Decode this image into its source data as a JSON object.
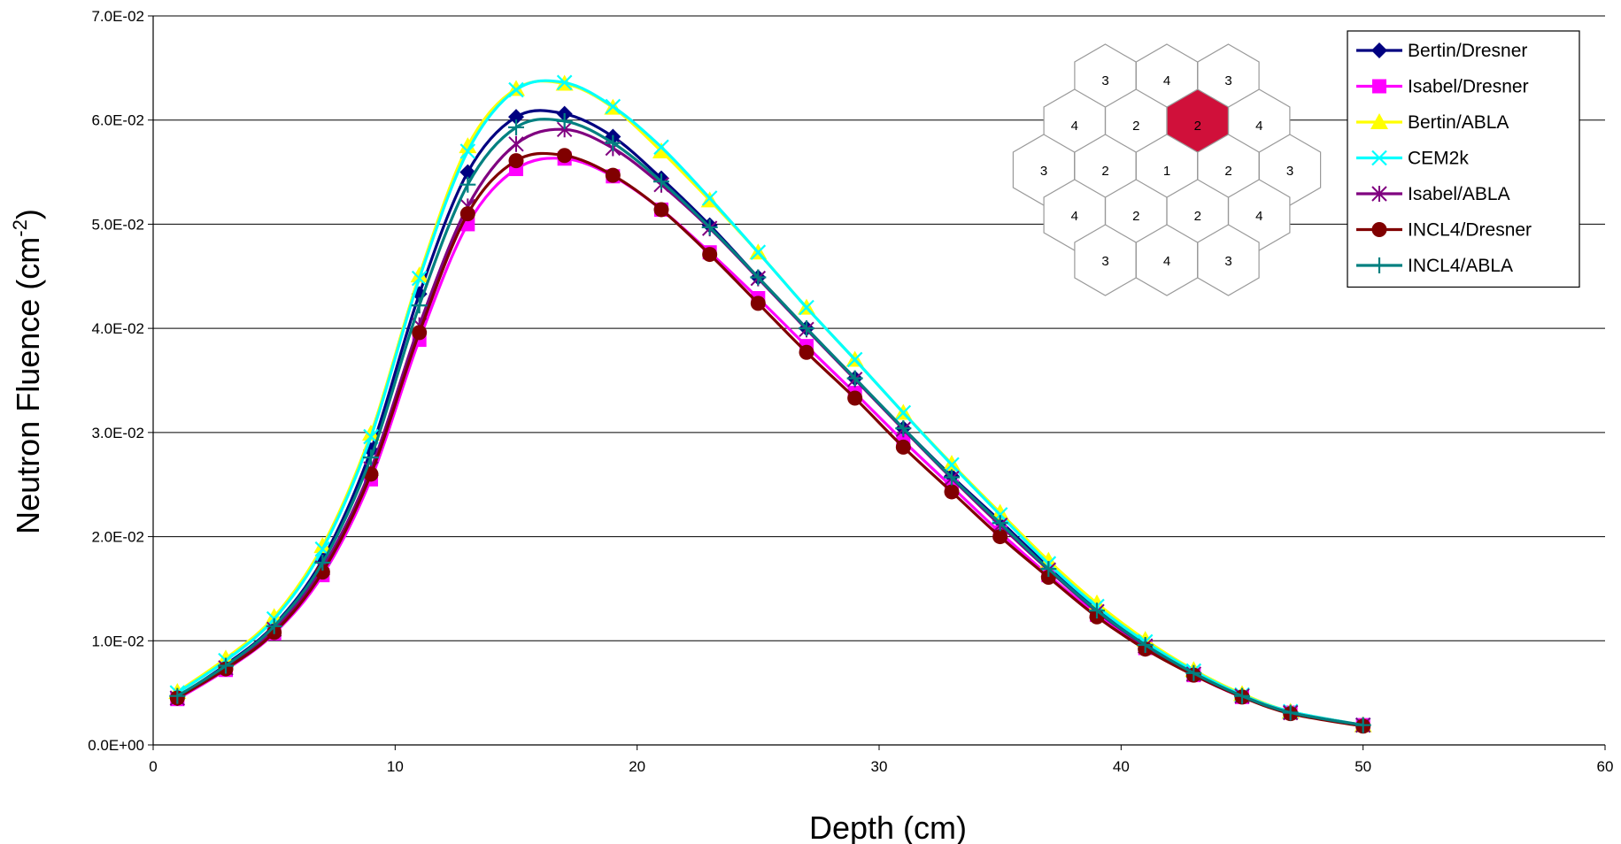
{
  "chart_data": {
    "type": "line",
    "title": "",
    "xlabel": "Depth (cm)",
    "ylabel": "Neutron Fluence (cm",
    "ylabel_sup": "-2",
    "ylabel_close": ")",
    "xlim": [
      0,
      60
    ],
    "ylim": [
      0,
      0.07
    ],
    "x_ticks": [
      "0",
      "10",
      "20",
      "30",
      "40",
      "50",
      "60"
    ],
    "y_ticks": [
      "0.0E+00",
      "1.0E-02",
      "2.0E-02",
      "3.0E-02",
      "4.0E-02",
      "5.0E-02",
      "6.0E-02",
      "7.0E-02"
    ],
    "grid": "horizontal",
    "legend_position": "top-right",
    "x": [
      1,
      3,
      5,
      7,
      9,
      11,
      13,
      15,
      17,
      19,
      21,
      23,
      25,
      27,
      29,
      31,
      33,
      35,
      37,
      39,
      41,
      43,
      45,
      47,
      50
    ],
    "series": [
      {
        "name": "Bertin/Dresner",
        "color": "#000080",
        "marker": "diamond",
        "values": [
          0.0046,
          0.0077,
          0.0115,
          0.0178,
          0.0283,
          0.0433,
          0.055,
          0.0603,
          0.0606,
          0.0584,
          0.0544,
          0.0499,
          0.0449,
          0.04,
          0.0352,
          0.0304,
          0.0258,
          0.0215,
          0.0171,
          0.0131,
          0.0097,
          0.0069,
          0.0047,
          0.0031,
          0.0019
        ]
      },
      {
        "name": "Isabel/Dresner",
        "color": "#ff00ff",
        "marker": "square",
        "values": [
          0.0044,
          0.0072,
          0.0107,
          0.0163,
          0.0255,
          0.0389,
          0.05,
          0.0553,
          0.0563,
          0.0546,
          0.0514,
          0.0473,
          0.0429,
          0.0383,
          0.0338,
          0.0292,
          0.0248,
          0.0204,
          0.0163,
          0.0125,
          0.0093,
          0.0067,
          0.0046,
          0.0031,
          0.0019
        ]
      },
      {
        "name": "Bertin/ABLA",
        "color": "#ffff00",
        "marker": "triangle",
        "values": [
          0.0051,
          0.0083,
          0.0123,
          0.0191,
          0.0299,
          0.0451,
          0.0575,
          0.063,
          0.0635,
          0.0612,
          0.057,
          0.0523,
          0.0473,
          0.042,
          0.037,
          0.0319,
          0.027,
          0.0223,
          0.0177,
          0.0136,
          0.0101,
          0.0072,
          0.0049,
          0.0032,
          0.0019
        ]
      },
      {
        "name": "CEM2k",
        "color": "#00ffff",
        "marker": "x",
        "values": [
          0.005,
          0.0081,
          0.0121,
          0.0188,
          0.0296,
          0.0448,
          0.057,
          0.0629,
          0.0636,
          0.0613,
          0.0574,
          0.0525,
          0.0473,
          0.042,
          0.037,
          0.0319,
          0.0269,
          0.0221,
          0.0174,
          0.0133,
          0.0099,
          0.0071,
          0.0048,
          0.0032,
          0.0019
        ]
      },
      {
        "name": "Isabel/ABLA",
        "color": "#800080",
        "marker": "asterisk",
        "values": [
          0.0045,
          0.0074,
          0.0111,
          0.017,
          0.0265,
          0.0403,
          0.0517,
          0.0577,
          0.0591,
          0.0573,
          0.0538,
          0.0496,
          0.0448,
          0.0399,
          0.0351,
          0.0303,
          0.0256,
          0.0211,
          0.0168,
          0.0128,
          0.0095,
          0.0068,
          0.0047,
          0.0031,
          0.0019
        ]
      },
      {
        "name": "INCL4/Dresner",
        "color": "#800000",
        "marker": "circle",
        "values": [
          0.0045,
          0.0073,
          0.0108,
          0.0166,
          0.026,
          0.0396,
          0.051,
          0.0561,
          0.0566,
          0.0547,
          0.0514,
          0.0471,
          0.0424,
          0.0377,
          0.0333,
          0.0286,
          0.0243,
          0.02,
          0.0161,
          0.0123,
          0.0092,
          0.0067,
          0.0046,
          0.003,
          0.0018
        ]
      },
      {
        "name": "INCL4/ABLA",
        "color": "#008080",
        "marker": "plus",
        "values": [
          0.0047,
          0.0076,
          0.0114,
          0.0175,
          0.0276,
          0.0422,
          0.0538,
          0.0593,
          0.0599,
          0.0578,
          0.0541,
          0.0497,
          0.0449,
          0.04,
          0.0352,
          0.0304,
          0.0257,
          0.0213,
          0.0169,
          0.0129,
          0.0096,
          0.0069,
          0.0047,
          0.0031,
          0.0019
        ]
      }
    ],
    "inset": {
      "highlight_color": "#d0103a",
      "cells": [
        {
          "label": "3"
        },
        {
          "label": "4"
        },
        {
          "label": "3"
        },
        {
          "label": "4"
        },
        {
          "label": "2"
        },
        {
          "label": "2",
          "highlight": true
        },
        {
          "label": "4"
        },
        {
          "label": "3"
        },
        {
          "label": "2"
        },
        {
          "label": "1"
        },
        {
          "label": "2"
        },
        {
          "label": "3"
        },
        {
          "label": "4"
        },
        {
          "label": "2"
        },
        {
          "label": "2"
        },
        {
          "label": "4"
        },
        {
          "label": "3"
        },
        {
          "label": "4"
        },
        {
          "label": "3"
        }
      ]
    }
  }
}
